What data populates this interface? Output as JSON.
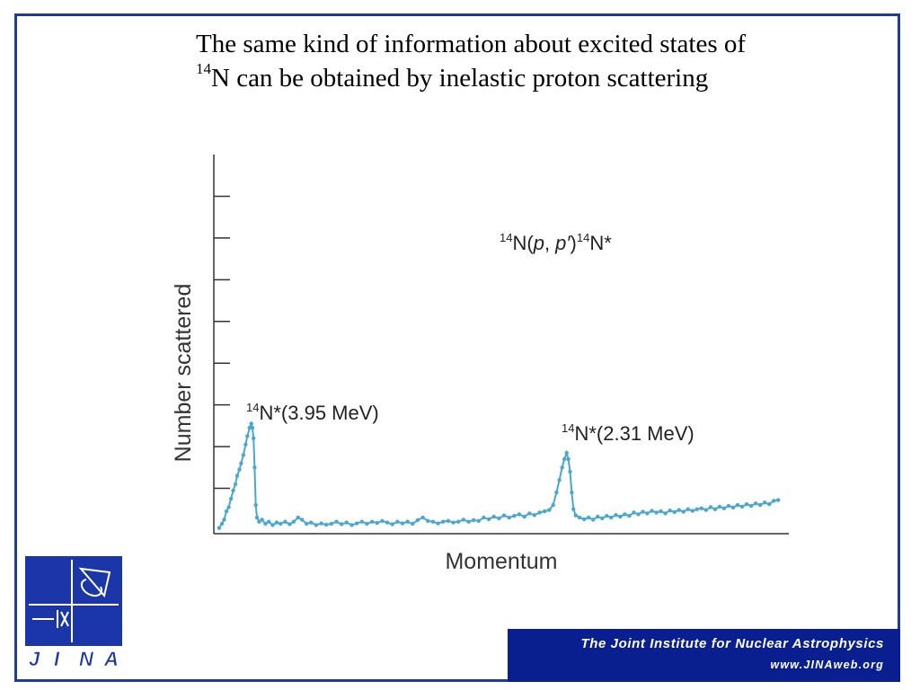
{
  "title": {
    "line1": "The same kind of information about excited states of",
    "line2_sup": "14",
    "line2_rest": "N can be obtained by inelastic proton scattering"
  },
  "colors": {
    "series": "#4aa8d0",
    "frame": "#1f3b9c",
    "footer_bg": "#0a1f8f",
    "logo_bg": "#1a36a8"
  },
  "chart_data": {
    "type": "scatter",
    "xlabel": "Momentum",
    "ylabel": "Number scattered",
    "xlim": [
      0,
      100
    ],
    "ylim": [
      0,
      9
    ],
    "y_ticks": [
      1,
      2,
      3,
      4,
      5,
      6,
      7,
      8
    ],
    "reaction_label": {
      "sup1": "14",
      "pre": "N(",
      "p1": "p",
      "mid": ", ",
      "p2": "p′",
      "post": ")",
      "sup2": "14",
      "end": "N*"
    },
    "annotations": [
      {
        "sup": "14",
        "text": "N*(3.95 MeV)",
        "x": 6.5,
        "y": 2.6
      },
      {
        "sup": "14",
        "text": "N*(2.31 MeV)",
        "x": 62.5,
        "y": 1.9
      }
    ],
    "series": [
      {
        "points": [
          [
            0.3,
            0.05
          ],
          [
            0.8,
            0.15
          ],
          [
            1.2,
            0.25
          ],
          [
            1.6,
            0.45
          ],
          [
            2.0,
            0.55
          ],
          [
            2.4,
            0.75
          ],
          [
            2.8,
            0.95
          ],
          [
            3.2,
            1.1
          ],
          [
            3.5,
            1.3
          ],
          [
            3.9,
            1.45
          ],
          [
            4.2,
            1.6
          ],
          [
            4.6,
            1.8
          ],
          [
            5.0,
            2.05
          ],
          [
            5.3,
            2.25
          ],
          [
            5.7,
            2.45
          ],
          [
            6.0,
            2.55
          ],
          [
            6.2,
            2.45
          ],
          [
            6.4,
            2.2
          ],
          [
            6.6,
            1.5
          ],
          [
            6.8,
            0.6
          ],
          [
            7.0,
            0.3
          ],
          [
            7.4,
            0.2
          ],
          [
            7.9,
            0.25
          ],
          [
            8.5,
            0.15
          ],
          [
            9.1,
            0.2
          ],
          [
            9.8,
            0.12
          ],
          [
            10.5,
            0.18
          ],
          [
            11.2,
            0.15
          ],
          [
            12.0,
            0.2
          ],
          [
            12.8,
            0.14
          ],
          [
            13.5,
            0.2
          ],
          [
            14.3,
            0.3
          ],
          [
            15.0,
            0.25
          ],
          [
            15.8,
            0.15
          ],
          [
            16.6,
            0.18
          ],
          [
            17.5,
            0.12
          ],
          [
            18.4,
            0.16
          ],
          [
            19.3,
            0.13
          ],
          [
            20.2,
            0.15
          ],
          [
            21.1,
            0.2
          ],
          [
            22.0,
            0.14
          ],
          [
            22.9,
            0.18
          ],
          [
            23.8,
            0.12
          ],
          [
            24.7,
            0.16
          ],
          [
            25.6,
            0.2
          ],
          [
            26.5,
            0.15
          ],
          [
            27.4,
            0.2
          ],
          [
            28.3,
            0.17
          ],
          [
            29.2,
            0.22
          ],
          [
            30.1,
            0.18
          ],
          [
            31.0,
            0.14
          ],
          [
            31.9,
            0.2
          ],
          [
            32.8,
            0.16
          ],
          [
            33.7,
            0.2
          ],
          [
            34.6,
            0.15
          ],
          [
            35.5,
            0.24
          ],
          [
            36.4,
            0.3
          ],
          [
            37.3,
            0.22
          ],
          [
            38.2,
            0.2
          ],
          [
            39.1,
            0.16
          ],
          [
            40.0,
            0.2
          ],
          [
            40.9,
            0.22
          ],
          [
            41.8,
            0.18
          ],
          [
            42.7,
            0.2
          ],
          [
            43.6,
            0.25
          ],
          [
            44.5,
            0.2
          ],
          [
            45.4,
            0.24
          ],
          [
            46.3,
            0.22
          ],
          [
            47.2,
            0.3
          ],
          [
            48.1,
            0.26
          ],
          [
            49.0,
            0.32
          ],
          [
            49.9,
            0.28
          ],
          [
            50.8,
            0.35
          ],
          [
            51.7,
            0.3
          ],
          [
            52.6,
            0.34
          ],
          [
            53.5,
            0.38
          ],
          [
            54.4,
            0.32
          ],
          [
            55.3,
            0.4
          ],
          [
            56.2,
            0.36
          ],
          [
            57.1,
            0.42
          ],
          [
            58.0,
            0.45
          ],
          [
            58.8,
            0.48
          ],
          [
            59.5,
            0.6
          ],
          [
            60.1,
            0.9
          ],
          [
            60.6,
            1.2
          ],
          [
            61.1,
            1.5
          ],
          [
            61.5,
            1.7
          ],
          [
            61.9,
            1.85
          ],
          [
            62.2,
            1.7
          ],
          [
            62.5,
            1.4
          ],
          [
            62.8,
            0.9
          ],
          [
            63.1,
            0.5
          ],
          [
            63.5,
            0.35
          ],
          [
            64.2,
            0.3
          ],
          [
            65.0,
            0.26
          ],
          [
            65.8,
            0.3
          ],
          [
            66.6,
            0.25
          ],
          [
            67.4,
            0.32
          ],
          [
            68.2,
            0.28
          ],
          [
            69.0,
            0.34
          ],
          [
            69.8,
            0.3
          ],
          [
            70.6,
            0.36
          ],
          [
            71.4,
            0.32
          ],
          [
            72.2,
            0.38
          ],
          [
            73.0,
            0.34
          ],
          [
            73.8,
            0.42
          ],
          [
            74.6,
            0.38
          ],
          [
            75.4,
            0.44
          ],
          [
            76.2,
            0.4
          ],
          [
            77.0,
            0.46
          ],
          [
            77.8,
            0.42
          ],
          [
            78.6,
            0.45
          ],
          [
            79.4,
            0.4
          ],
          [
            80.2,
            0.47
          ],
          [
            81.0,
            0.43
          ],
          [
            81.8,
            0.48
          ],
          [
            82.6,
            0.44
          ],
          [
            83.4,
            0.5
          ],
          [
            84.2,
            0.46
          ],
          [
            85.0,
            0.5
          ],
          [
            85.8,
            0.52
          ],
          [
            86.6,
            0.48
          ],
          [
            87.4,
            0.55
          ],
          [
            88.2,
            0.5
          ],
          [
            89.0,
            0.56
          ],
          [
            89.8,
            0.52
          ],
          [
            90.6,
            0.58
          ],
          [
            91.4,
            0.54
          ],
          [
            92.2,
            0.6
          ],
          [
            93.0,
            0.56
          ],
          [
            93.8,
            0.62
          ],
          [
            94.6,
            0.58
          ],
          [
            95.4,
            0.64
          ],
          [
            96.2,
            0.6
          ],
          [
            97.0,
            0.66
          ],
          [
            97.8,
            0.62
          ],
          [
            98.6,
            0.7
          ],
          [
            99.4,
            0.72
          ]
        ]
      }
    ]
  },
  "logo": {
    "letters": [
      "J",
      "I",
      "N",
      "A"
    ]
  },
  "footer": {
    "line1": "The Joint Institute for Nuclear Astrophysics",
    "line2": "www.JINAweb.org"
  }
}
